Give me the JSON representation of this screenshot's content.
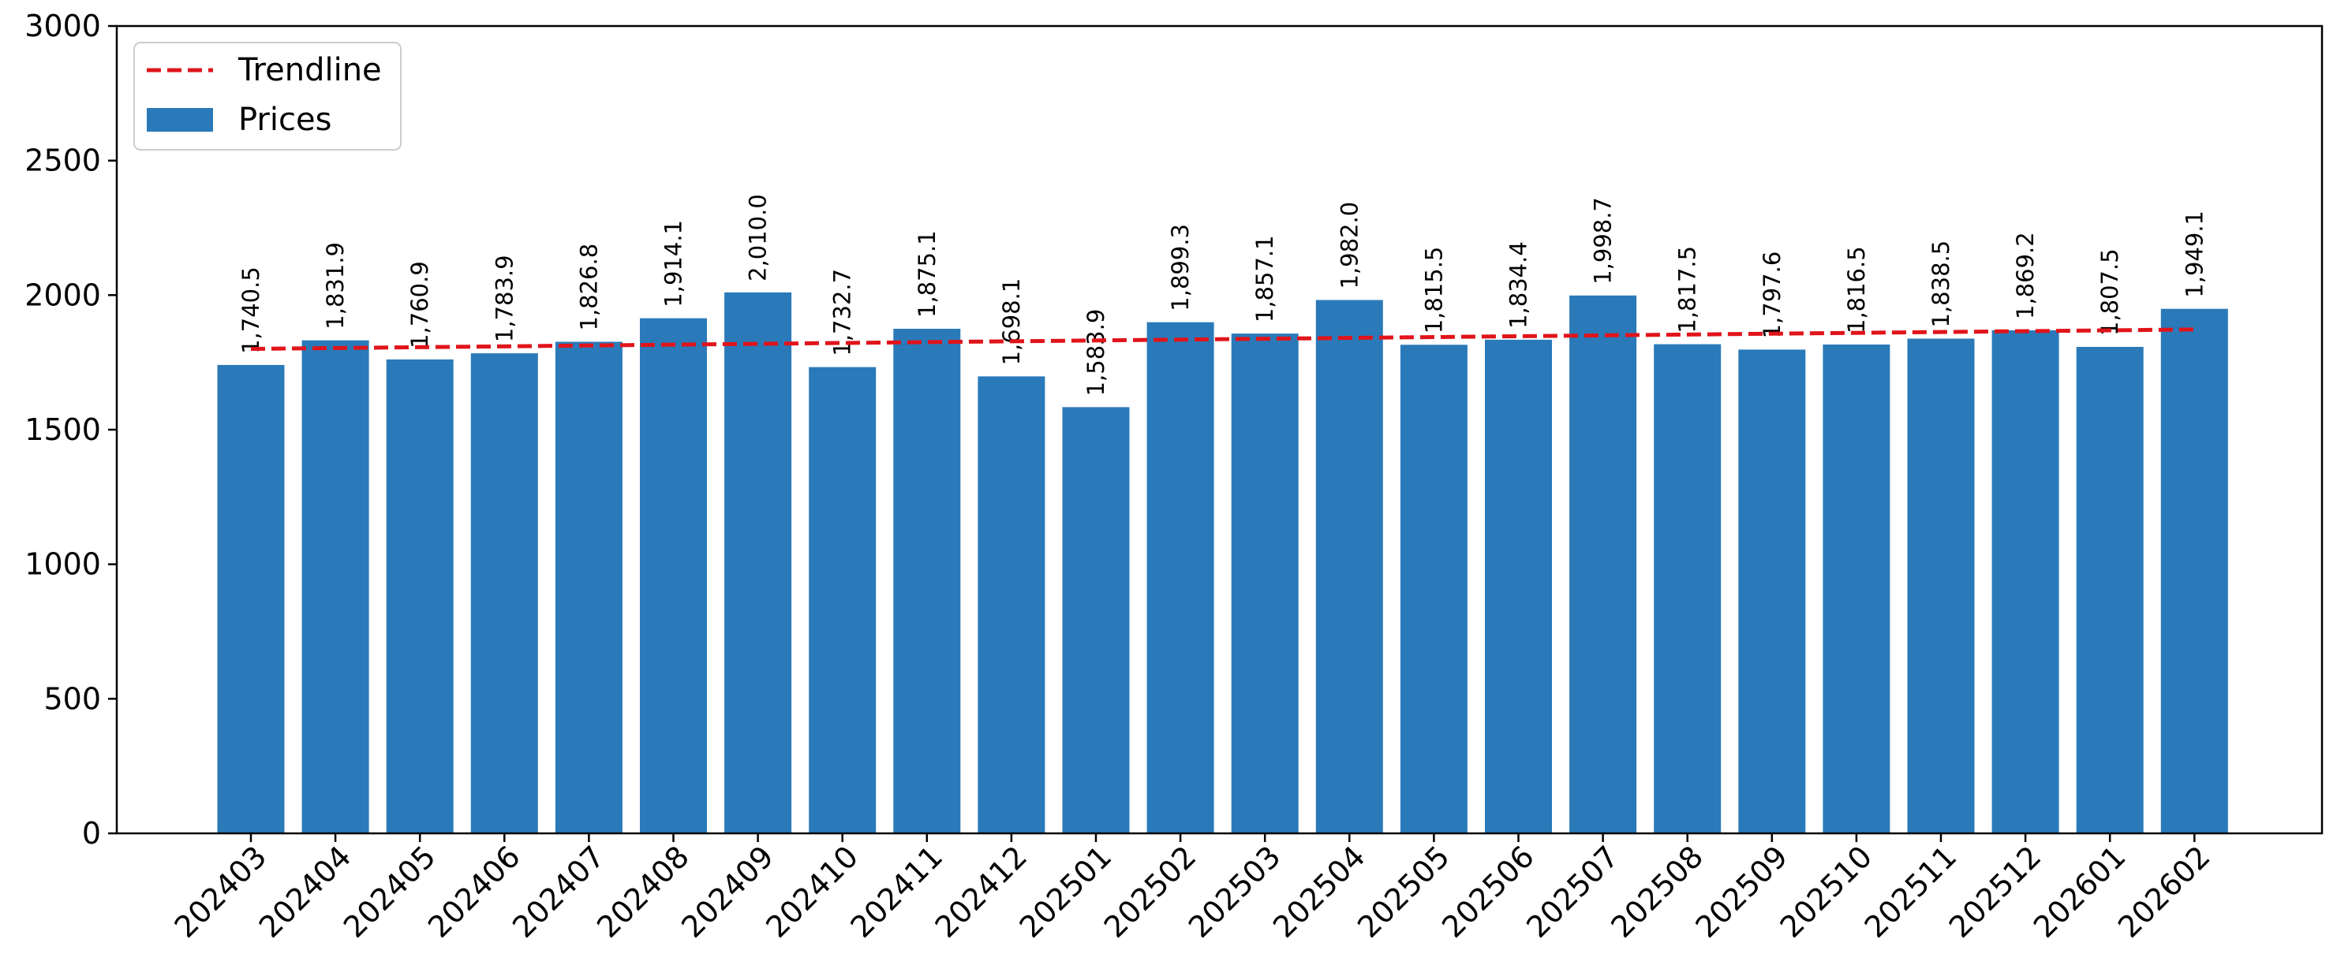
{
  "chart_data": {
    "type": "bar",
    "categories": [
      "202403",
      "202404",
      "202405",
      "202406",
      "202407",
      "202408",
      "202409",
      "202410",
      "202411",
      "202412",
      "202501",
      "202502",
      "202503",
      "202504",
      "202505",
      "202506",
      "202507",
      "202508",
      "202509",
      "202510",
      "202511",
      "202512",
      "202601",
      "202602"
    ],
    "series": [
      {
        "name": "Prices",
        "values": [
          1740.5,
          1831.9,
          1760.9,
          1783.9,
          1826.8,
          1914.1,
          2010.0,
          1732.7,
          1875.1,
          1698.1,
          1583.9,
          1899.3,
          1857.1,
          1982.0,
          1815.5,
          1834.4,
          1998.7,
          1817.5,
          1797.6,
          1816.5,
          1838.5,
          1869.2,
          1807.5,
          1949.1
        ],
        "data_labels": [
          "1,740.5",
          "1,831.9",
          "1,760.9",
          "1,783.9",
          "1,826.8",
          "1,914.1",
          "2,010.0",
          "1,732.7",
          "1,875.1",
          "1,698.1",
          "1,583.9",
          "1,899.3",
          "1,857.1",
          "1,982.0",
          "1,815.5",
          "1,834.4",
          "1,998.7",
          "1,817.5",
          "1,797.6",
          "1,816.5",
          "1,838.5",
          "1,869.2",
          "1,807.5",
          "1,949.1"
        ],
        "color": "#2a7ab9"
      },
      {
        "name": "Trendline",
        "type": "line",
        "style": "dashed",
        "values_start_end": [
          1800.4,
          1872.3
        ],
        "color": "#e0141a"
      }
    ],
    "ylim": [
      0,
      3000
    ],
    "yticks": [
      0,
      500,
      1000,
      1500,
      2000,
      2500,
      3000
    ],
    "ytick_labels": [
      "0",
      "500",
      "1000",
      "1500",
      "2000",
      "2500",
      "3000"
    ],
    "xtick_rotation": 45,
    "grid": false,
    "legend": {
      "placement": "top-left",
      "entries": [
        "Trendline",
        "Prices"
      ]
    },
    "title": "",
    "xlabel": "",
    "ylabel": ""
  }
}
